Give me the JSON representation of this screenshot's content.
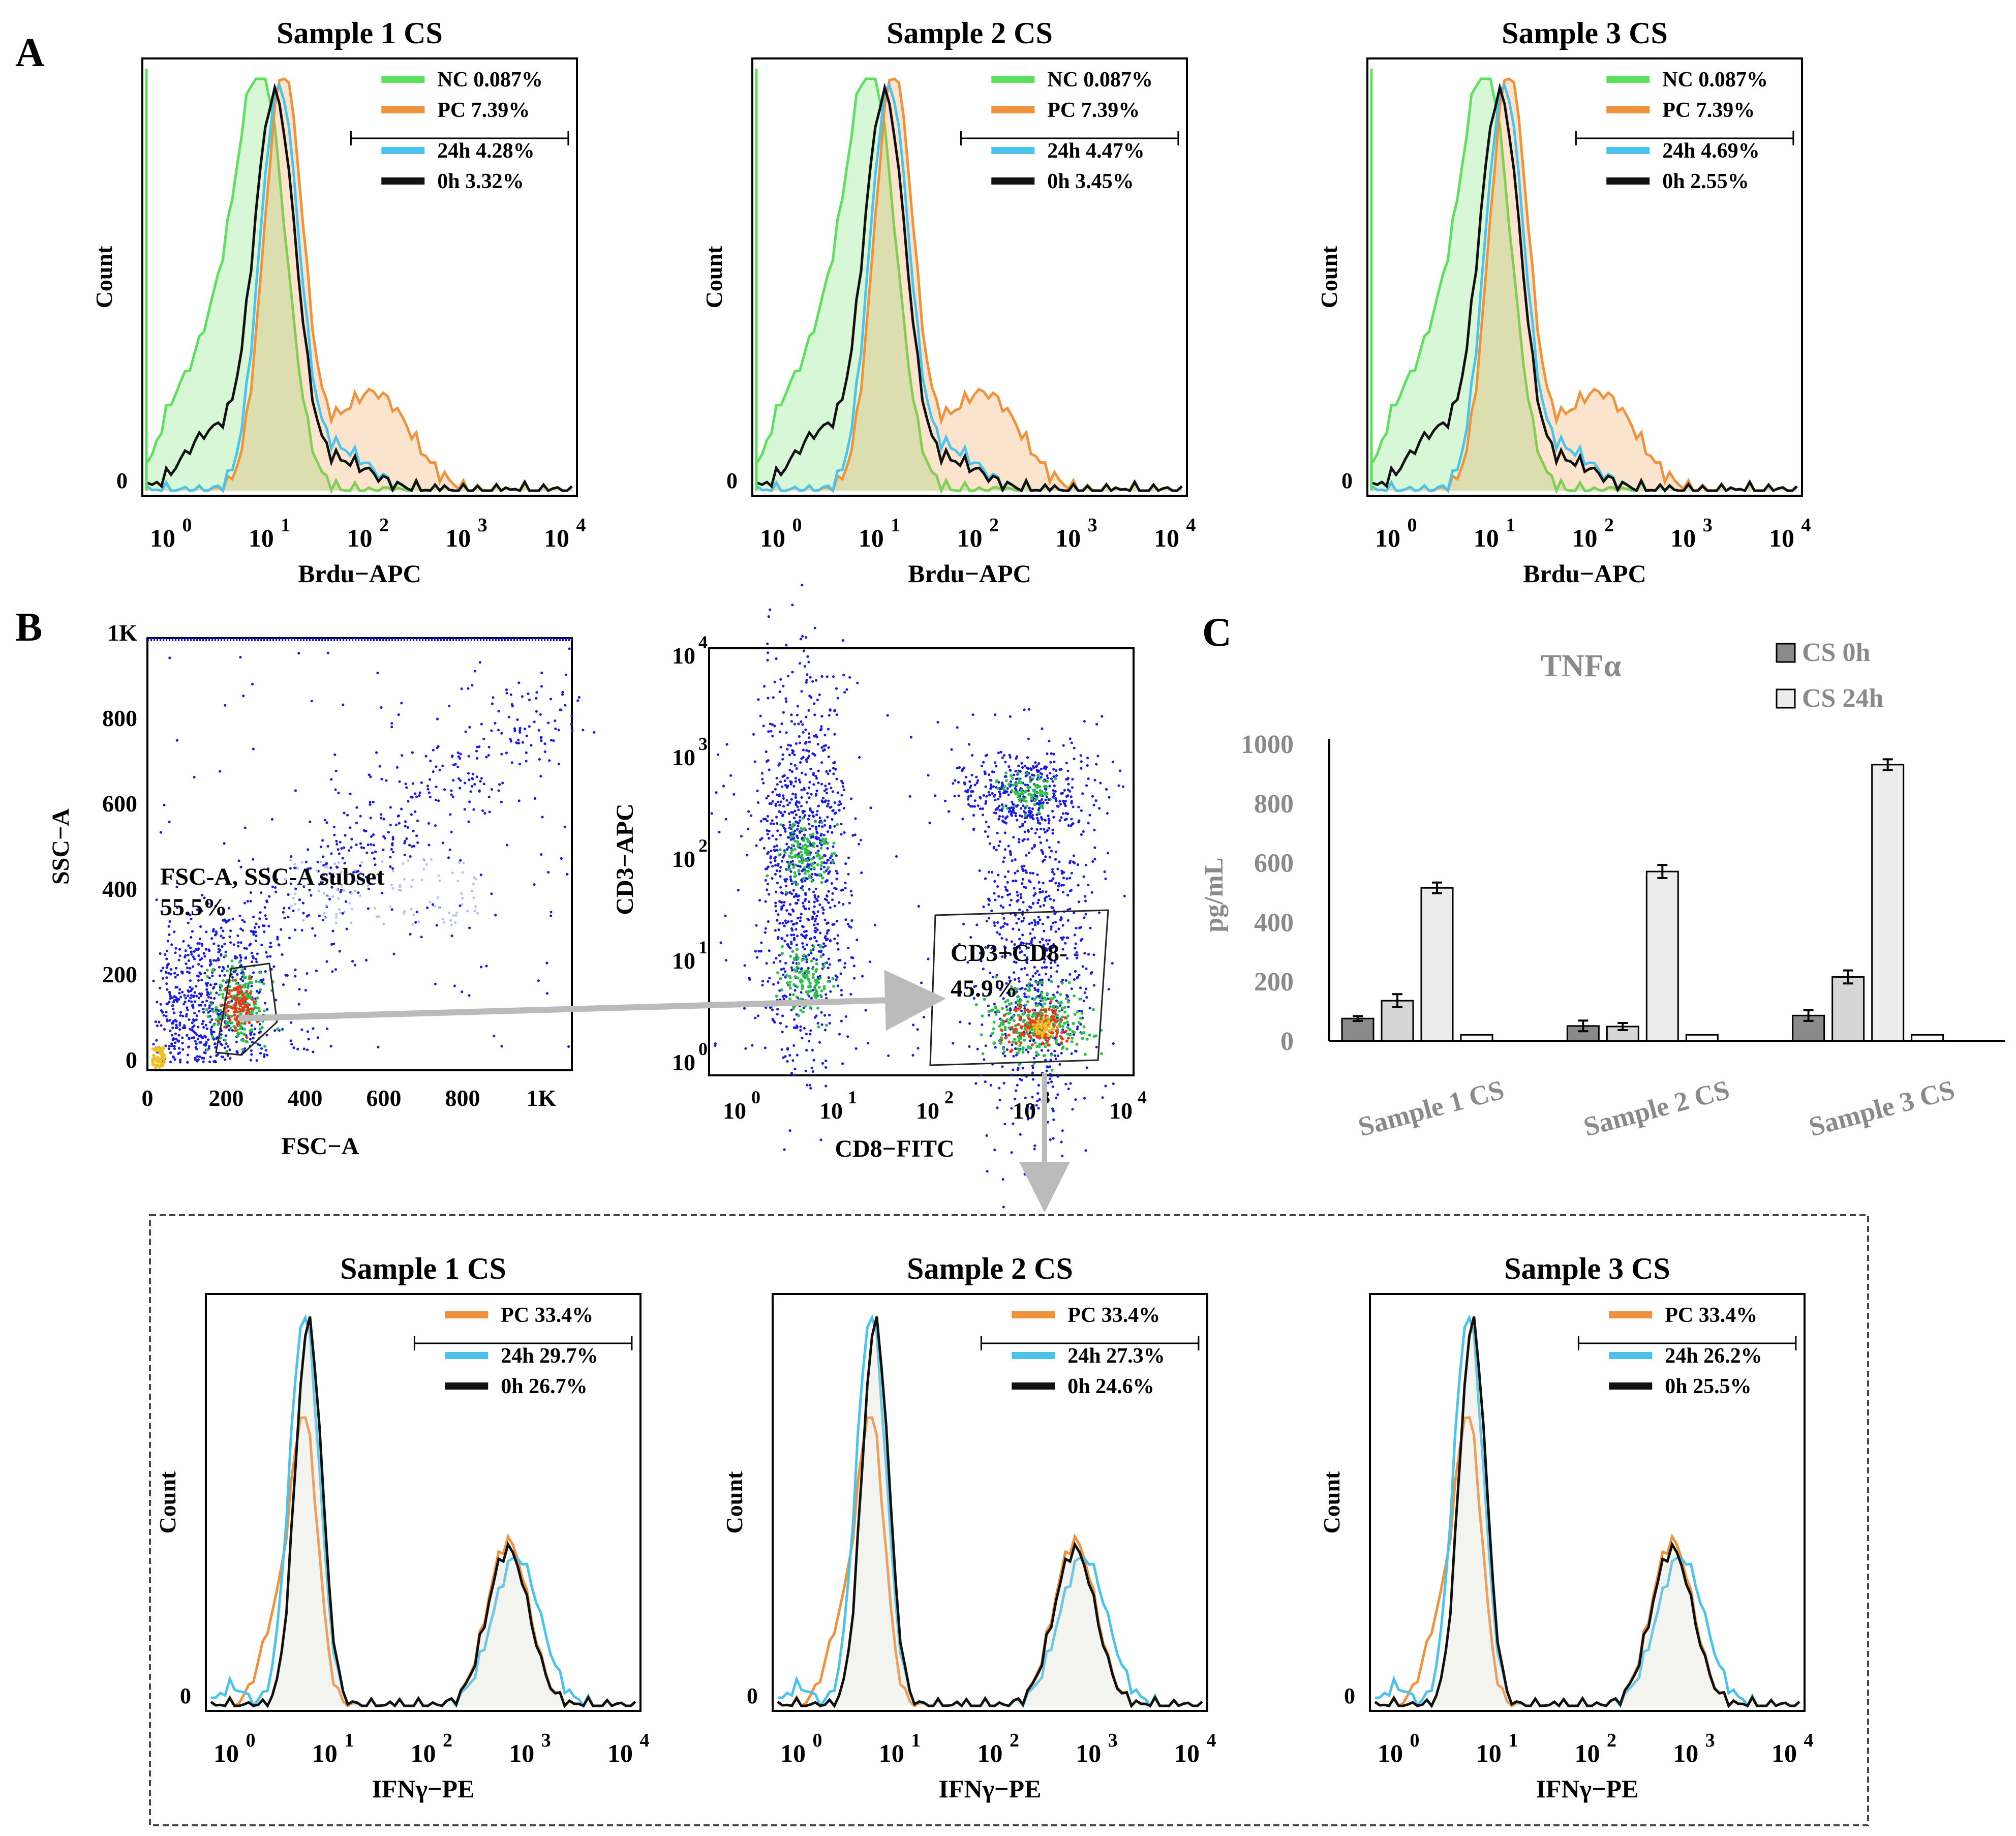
{
  "colors": {
    "nc": "#5ee05e",
    "pc": "#f0923c",
    "h24": "#4cc3ec",
    "h0": "#111111",
    "arrow": "#bbbbbb",
    "bar_dark": "#8a8a8a",
    "bar_light": "#ececec"
  },
  "panel_labels": {
    "a": "A",
    "b": "B",
    "c": "C"
  },
  "panel_a": {
    "x_axis_label": "Brdu−APC",
    "y_axis_label": "Count",
    "y_zero_tick": "0",
    "x_ticks": [
      "10",
      "10",
      "10",
      "10",
      "10"
    ],
    "x_tick_exponents": [
      "0",
      "1",
      "2",
      "3",
      "4"
    ],
    "plots": [
      {
        "title": "Sample 1 CS",
        "legend": [
          {
            "key": "nc",
            "label": "NC 0.087%"
          },
          {
            "key": "pc",
            "label": "PC 7.39%"
          },
          {
            "key": "h24",
            "label": "24h 4.28%"
          },
          {
            "key": "h0",
            "label": "0h 3.32%"
          }
        ]
      },
      {
        "title": "Sample 2 CS",
        "legend": [
          {
            "key": "nc",
            "label": "NC 0.087%"
          },
          {
            "key": "pc",
            "label": "PC 7.39%"
          },
          {
            "key": "h24",
            "label": "24h 4.47%"
          },
          {
            "key": "h0",
            "label": "0h 3.45%"
          }
        ]
      },
      {
        "title": "Sample 3 CS",
        "legend": [
          {
            "key": "nc",
            "label": "NC 0.087%"
          },
          {
            "key": "pc",
            "label": "PC 7.39%"
          },
          {
            "key": "h24",
            "label": "24h 4.69%"
          },
          {
            "key": "h0",
            "label": "0h 2.55%"
          }
        ]
      }
    ]
  },
  "panel_b": {
    "fsc_plot": {
      "x_label": "FSC−A",
      "y_label": "SSC−A",
      "x_ticks": [
        "0",
        "200",
        "400",
        "600",
        "800",
        "1K"
      ],
      "y_ticks": [
        "0",
        "200",
        "400",
        "600",
        "800",
        "1K"
      ],
      "gate_name": "FSC-A, SSC-A subset",
      "gate_value": "55.5%"
    },
    "cd_plot": {
      "x_label": "CD8−FITC",
      "y_label": "CD3−APC",
      "ticks": [
        "10",
        "10",
        "10",
        "10",
        "10"
      ],
      "tick_exponents": [
        "0",
        "1",
        "2",
        "3",
        "4"
      ],
      "gate_name": "CD3+CD8-",
      "gate_value": "45.9%"
    }
  },
  "panel_c": {
    "title": "TNFα",
    "y_label": "pg/mL",
    "legend": [
      "CS 0h",
      "CS 24h"
    ],
    "y_ticks": [
      "0",
      "200",
      "400",
      "600",
      "800",
      "1000"
    ],
    "categories": [
      "Sample 1 CS",
      "Sample 2 CS",
      "Sample 3 CS"
    ]
  },
  "panel_ifn": {
    "x_axis_label": "IFNγ−PE",
    "y_axis_label": "Count",
    "y_zero_tick": "0",
    "x_ticks": [
      "10",
      "10",
      "10",
      "10",
      "10"
    ],
    "x_tick_exponents": [
      "0",
      "1",
      "2",
      "3",
      "4"
    ],
    "plots": [
      {
        "title": "Sample 1 CS",
        "legend": [
          {
            "key": "pc",
            "label": "PC 33.4%"
          },
          {
            "key": "h24",
            "label": "24h 29.7%"
          },
          {
            "key": "h0",
            "label": "0h 26.7%"
          }
        ]
      },
      {
        "title": "Sample 2 CS",
        "legend": [
          {
            "key": "pc",
            "label": "PC 33.4%"
          },
          {
            "key": "h24",
            "label": "24h 27.3%"
          },
          {
            "key": "h0",
            "label": "0h 24.6%"
          }
        ]
      },
      {
        "title": "Sample 3 CS",
        "legend": [
          {
            "key": "pc",
            "label": "PC 33.4%"
          },
          {
            "key": "h24",
            "label": "24h 26.2%"
          },
          {
            "key": "h0",
            "label": "0h 25.5%"
          }
        ]
      }
    ]
  },
  "chart_data": [
    {
      "type": "bar",
      "title": "TNFα",
      "xlabel": "",
      "ylabel": "pg/mL",
      "ylim": [
        0,
        1000
      ],
      "categories": [
        "Sample 1 CS",
        "Sample 2 CS",
        "Sample 3 CS"
      ],
      "series": [
        {
          "name": "CS 0h",
          "values": [
            75,
            50,
            85
          ],
          "errors": [
            8,
            18,
            18
          ]
        },
        {
          "name": "",
          "values": [
            135,
            48,
            215
          ],
          "errors": [
            22,
            12,
            22
          ]
        },
        {
          "name": "CS 24h",
          "values": [
            515,
            570,
            930
          ],
          "errors": [
            18,
            22,
            18
          ]
        },
        {
          "name": "",
          "values": [
            20,
            20,
            20
          ],
          "errors": [
            0,
            0,
            0
          ]
        }
      ]
    }
  ]
}
